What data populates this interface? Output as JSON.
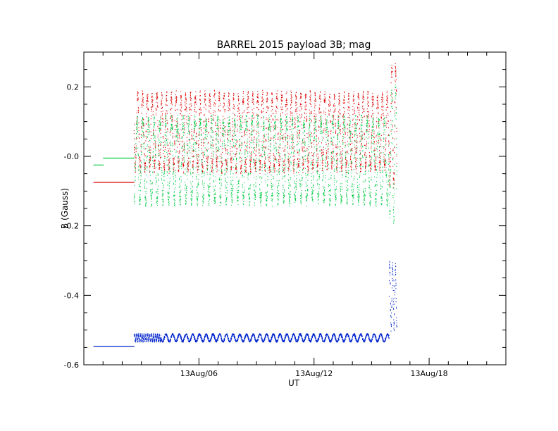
{
  "chart_data": {
    "type": "scatter",
    "title": "BARREL 2015 payload 3B; mag",
    "xlabel": "UT",
    "ylabel": "B (Gauss)",
    "x_units": "hours UT (13 Aug)",
    "xlim": [
      0.0,
      22.0
    ],
    "ylim": [
      -0.6,
      0.3
    ],
    "x_ticks": [
      {
        "value": 6,
        "label": "13Aug/06"
      },
      {
        "value": 12,
        "label": "13Aug/12"
      },
      {
        "value": 18,
        "label": "13Aug/18"
      }
    ],
    "y_ticks": [
      {
        "value": 0.2,
        "label": "0.2"
      },
      {
        "value": 0.0,
        "label": "-0.0"
      },
      {
        "value": -0.2,
        "label": "-0.2"
      },
      {
        "value": -0.4,
        "label": "-0.4"
      },
      {
        "value": -0.6,
        "label": "-0.6"
      }
    ],
    "x_minor_step": 1,
    "y_minor_step": 0.05,
    "grid": false,
    "legend": "none",
    "series": [
      {
        "color": "#dd0000",
        "segments": [
          {
            "x0": 0.5,
            "x1": 2.6,
            "mode": "flat",
            "y": -0.075
          },
          {
            "x0": 2.6,
            "x1": 15.9,
            "mode": "oscillate",
            "ymin": -0.05,
            "ymax": 0.19,
            "period": 0.25
          },
          {
            "x0": 15.9,
            "x1": 16.3,
            "mode": "oscillate",
            "ymin": -0.1,
            "ymax": 0.28,
            "period": 0.2
          }
        ]
      },
      {
        "color": "#00cc44",
        "segments": [
          {
            "x0": 0.5,
            "x1": 1.0,
            "mode": "flat",
            "y": -0.025
          },
          {
            "x0": 1.0,
            "x1": 2.6,
            "mode": "flat",
            "y": -0.005
          },
          {
            "x0": 2.6,
            "x1": 15.9,
            "mode": "oscillate",
            "ymin": -0.145,
            "ymax": 0.12,
            "period": 0.3
          },
          {
            "x0": 15.9,
            "x1": 16.3,
            "mode": "oscillate",
            "ymin": -0.2,
            "ymax": 0.22,
            "period": 0.2
          }
        ]
      },
      {
        "color": "#0022cc",
        "segments": [
          {
            "x0": 0.5,
            "x1": 2.6,
            "mode": "flat",
            "y": -0.547
          },
          {
            "x0": 2.6,
            "x1": 4.0,
            "mode": "oscillate",
            "ymin": -0.535,
            "ymax": -0.51,
            "period": 0.1
          },
          {
            "x0": 4.0,
            "x1": 15.9,
            "mode": "oscillate",
            "ymin": -0.535,
            "ymax": -0.51,
            "period": 0.35
          },
          {
            "x0": 15.9,
            "x1": 16.3,
            "mode": "oscillate",
            "ymin": -0.51,
            "ymax": -0.3,
            "period": 0.15
          }
        ]
      }
    ]
  }
}
